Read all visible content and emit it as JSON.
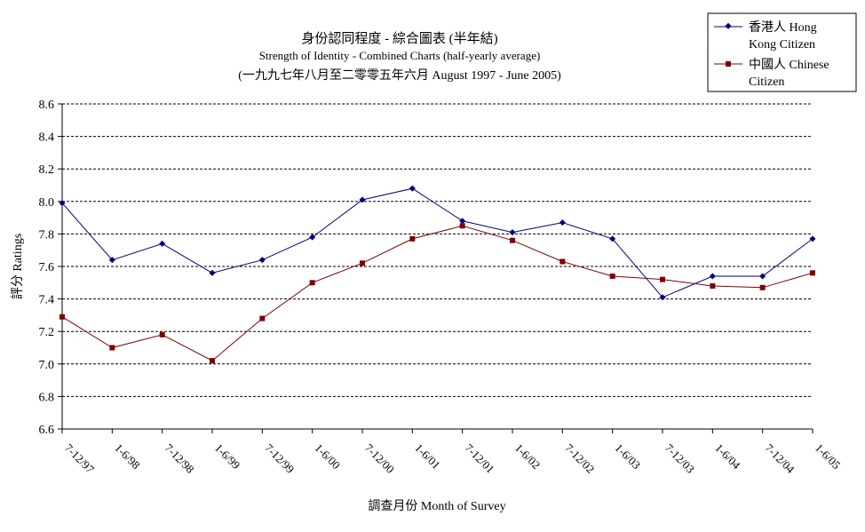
{
  "chart_data": {
    "type": "line",
    "title": "身份認同程度 - 綜合圖表 (半年結)",
    "subtitle": "Strength of Identity - Combined Charts (half-yearly average)",
    "subtitle2": "(一九九七年八月至二零零五年六月 August 1997 - June 2005)",
    "xlabel": "調查月份 Month of Survey",
    "ylabel": "評分 Ratings",
    "categories": [
      "7-12/97",
      "1-6/98",
      "7-12/98",
      "1-6/99",
      "7-12/99",
      "1-6/00",
      "7-12/00",
      "1-6/01",
      "7-12/01",
      "1-6/02",
      "7-12/02",
      "1-6/03",
      "7-12/03",
      "1-6/04",
      "7-12/04",
      "1-6/05"
    ],
    "ylim": [
      6.6,
      8.6
    ],
    "yticks": [
      "6.6",
      "6.8",
      "7.0",
      "7.2",
      "7.4",
      "7.6",
      "7.8",
      "8.0",
      "8.2",
      "8.4",
      "8.6"
    ],
    "grid": "horizontal-dashed",
    "legend_position": "top-right",
    "series": [
      {
        "name_line1": "香港人 Hong",
        "name_line2": "Kong Citizen",
        "color": "#000080",
        "marker": "diamond",
        "values": [
          7.99,
          7.64,
          7.74,
          7.56,
          7.64,
          7.78,
          8.01,
          8.08,
          7.88,
          7.81,
          7.87,
          7.77,
          7.41,
          7.54,
          7.54,
          7.77
        ]
      },
      {
        "name_line1": "中國人 Chinese",
        "name_line2": "Citizen",
        "color": "#800000",
        "marker": "square",
        "values": [
          7.29,
          7.1,
          7.18,
          7.02,
          7.28,
          7.5,
          7.62,
          7.77,
          7.85,
          7.76,
          7.63,
          7.54,
          7.52,
          7.48,
          7.47,
          7.56
        ]
      }
    ]
  }
}
